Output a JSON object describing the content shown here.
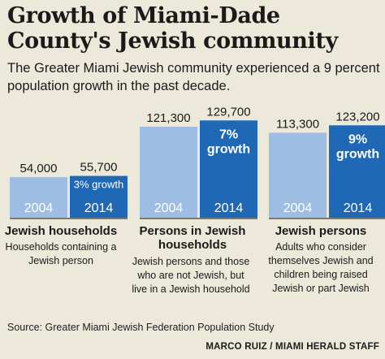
{
  "header": {
    "title": "Growth of Miami-Dade County's Jewish community",
    "subtitle": "The Greater Miami Jewish community experienced a 9 percent population growth in the past decade."
  },
  "chart_data": {
    "type": "bar",
    "categories": [
      "2004",
      "2014"
    ],
    "colors": {
      "2004": "#9dbde3",
      "2014": "#1e68b6",
      "rule": "#555555"
    },
    "groups": [
      {
        "title": "Jewish households",
        "description": "Households containing a Jewish person",
        "values": [
          54000,
          55700
        ],
        "value_labels": [
          "54,000",
          "55,700"
        ],
        "growth_label": "3% growth"
      },
      {
        "title": "Persons in Jewish households",
        "description": "Jewish persons and those who are not Jewish, but live in a Jewish household",
        "values": [
          121300,
          129700
        ],
        "value_labels": [
          "121,300",
          "129,700"
        ],
        "growth_label": "7% growth"
      },
      {
        "title": "Jewish persons",
        "description": "Adults who consider themselves Jewish and children being raised Jewish or part Jewish",
        "values": [
          113300,
          123200
        ],
        "value_labels": [
          "113,300",
          "123,200"
        ],
        "growth_label": "9% growth"
      }
    ]
  },
  "footer": {
    "source": "Source: Greater Miami Jewish Federation Population Study",
    "credit": "MARCO RUIZ / MIAMI HERALD STAFF"
  }
}
